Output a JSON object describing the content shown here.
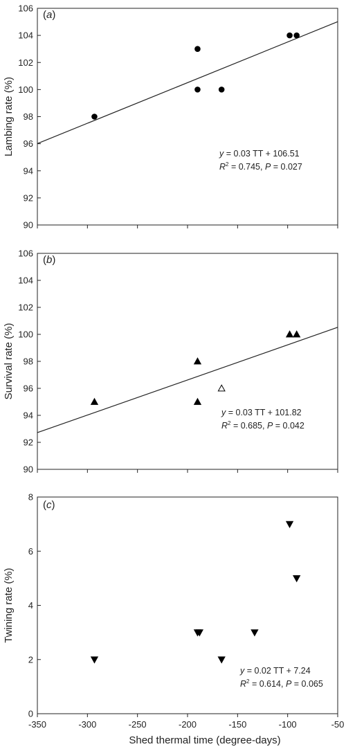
{
  "chart_data": [
    {
      "type": "scatter",
      "panel_label": "(a)",
      "panel_letter": "a",
      "ylabel": "Lambing rate (%)",
      "xlabel": "",
      "xlim": [
        -350,
        -50
      ],
      "ylim": [
        90,
        106
      ],
      "xticks": [
        -350,
        -300,
        -250,
        -200,
        -150,
        -100,
        -50
      ],
      "yticks": [
        90,
        92,
        94,
        96,
        98,
        100,
        102,
        104,
        106
      ],
      "x_tick_labels_shown": false,
      "marker": "circle",
      "points": [
        {
          "x": -293,
          "y": 98,
          "filled": true
        },
        {
          "x": -190,
          "y": 103,
          "filled": true
        },
        {
          "x": -190,
          "y": 100,
          "filled": true
        },
        {
          "x": -166,
          "y": 100,
          "filled": true
        },
        {
          "x": -98,
          "y": 104,
          "filled": true
        },
        {
          "x": -91,
          "y": 104,
          "filled": true
        }
      ],
      "regression": {
        "slope": 0.03,
        "intercept": 106.51,
        "x_range": [
          -350,
          -50
        ]
      },
      "equation": {
        "lhs": "y",
        "rhs": " = 0.03 TT + 106.51",
        "r2_value": " = 0.745, ",
        "p_value": " = 0.027"
      }
    },
    {
      "type": "scatter",
      "panel_label": "(b)",
      "panel_letter": "b",
      "ylabel": "Survival rate (%)",
      "xlabel": "",
      "xlim": [
        -350,
        -50
      ],
      "ylim": [
        90,
        106
      ],
      "xticks": [
        -350,
        -300,
        -250,
        -200,
        -150,
        -100,
        -50
      ],
      "yticks": [
        90,
        92,
        94,
        96,
        98,
        100,
        102,
        104,
        106
      ],
      "x_tick_labels_shown": false,
      "marker": "triangle-up",
      "points": [
        {
          "x": -293,
          "y": 95,
          "filled": true
        },
        {
          "x": -190,
          "y": 98,
          "filled": true
        },
        {
          "x": -190,
          "y": 95,
          "filled": true
        },
        {
          "x": -166,
          "y": 96,
          "filled": false
        },
        {
          "x": -98,
          "y": 100,
          "filled": true
        },
        {
          "x": -91,
          "y": 100,
          "filled": true
        }
      ],
      "regression": {
        "slope": 0.026,
        "intercept": 101.82,
        "x_range": [
          -350,
          -50
        ]
      },
      "equation": {
        "lhs": "y",
        "rhs": " = 0.03 TT + 101.82",
        "r2_value": " = 0.685, ",
        "p_value": " = 0.042"
      }
    },
    {
      "type": "scatter",
      "panel_label": "(c)",
      "panel_letter": "c",
      "ylabel": "Twining rate (%)",
      "xlabel": "Shed thermal time (degree-days)",
      "xlim": [
        -350,
        -50
      ],
      "ylim": [
        0,
        8
      ],
      "xticks": [
        -350,
        -300,
        -250,
        -200,
        -150,
        -100,
        -50
      ],
      "yticks": [
        0,
        2,
        4,
        6,
        8
      ],
      "x_tick_labels_shown": true,
      "marker": "triangle-down",
      "points": [
        {
          "x": -293,
          "y": 2,
          "filled": true
        },
        {
          "x": -190,
          "y": 3,
          "filled": true
        },
        {
          "x": -188,
          "y": 3,
          "filled": true
        },
        {
          "x": -166,
          "y": 2,
          "filled": true
        },
        {
          "x": -133,
          "y": 3,
          "filled": true
        },
        {
          "x": -98,
          "y": 7,
          "filled": true
        },
        {
          "x": -91,
          "y": 5,
          "filled": true
        }
      ],
      "regression": null,
      "equation": {
        "lhs": "y",
        "rhs": " = 0.02 TT + 7.24",
        "r2_value": " = 0.614, ",
        "p_value": " = 0.065"
      }
    }
  ],
  "shared": {
    "r2_symbol": "R",
    "r2_sup": "2",
    "p_symbol": "P"
  }
}
